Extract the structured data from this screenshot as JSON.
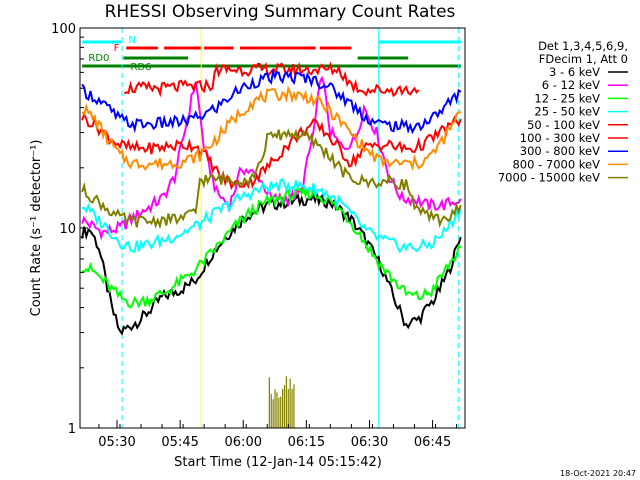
{
  "chart_data": {
    "type": "line",
    "title": "RHESSI Observing Summary Count Rates",
    "xlabel": "Start Time (12-Jan-14 05:15:42)",
    "ylabel": "Count Rate (s⁻¹ detector⁻¹)",
    "yscale": "log",
    "ylim": [
      1,
      100
    ],
    "xlim_minutes": [
      5.5,
      97
    ],
    "x_ticks": [
      "05:30",
      "05:45",
      "06:00",
      "06:15",
      "06:30",
      "06:45"
    ],
    "x_tick_minutes": [
      14.3,
      29.3,
      44.3,
      59.3,
      74.3,
      89.3
    ],
    "y_ticks": [
      "1",
      "10",
      "100"
    ],
    "legend_position": "right",
    "legend_header": [
      "Det 1,3,4,5,6,9,",
      "FDecim 1, Att 0"
    ],
    "series": [
      {
        "name": "3 - 6 keV",
        "color": "#000000",
        "points": [
          [
            6,
            9.5
          ],
          [
            8,
            9.8
          ],
          [
            10,
            8
          ],
          [
            13,
            4
          ],
          [
            15,
            3
          ],
          [
            20,
            3.5
          ],
          [
            25,
            4.5
          ],
          [
            30,
            5
          ],
          [
            33,
            5.5
          ],
          [
            36,
            7
          ],
          [
            40,
            9
          ],
          [
            45,
            11.5
          ],
          [
            50,
            13
          ],
          [
            55,
            13.5
          ],
          [
            60,
            14
          ],
          [
            65,
            13.5
          ],
          [
            70,
            11
          ],
          [
            73,
            9
          ],
          [
            77,
            6.5
          ],
          [
            80,
            4.5
          ],
          [
            83,
            3.3
          ],
          [
            86,
            3.5
          ],
          [
            90,
            4.5
          ],
          [
            93,
            6
          ],
          [
            96,
            9
          ]
        ]
      },
      {
        "name": "6 - 12 keV",
        "color": "#ff00ff",
        "points": [
          [
            6,
            11
          ],
          [
            11,
            9.5
          ],
          [
            15,
            10
          ],
          [
            20,
            12
          ],
          [
            25,
            14
          ],
          [
            28,
            18
          ],
          [
            31,
            35
          ],
          [
            33,
            55
          ],
          [
            35,
            25
          ],
          [
            38,
            15
          ],
          [
            41,
            13
          ],
          [
            44,
            20
          ],
          [
            48,
            18
          ],
          [
            51,
            14
          ],
          [
            55,
            14
          ],
          [
            58,
            15
          ],
          [
            61,
            30
          ],
          [
            63,
            60
          ],
          [
            65,
            30
          ],
          [
            68,
            25
          ],
          [
            71,
            28
          ],
          [
            73,
            40
          ],
          [
            76,
            30
          ],
          [
            79,
            18
          ],
          [
            82,
            14
          ],
          [
            85,
            14
          ],
          [
            88,
            13
          ],
          [
            92,
            13
          ],
          [
            96,
            14
          ]
        ]
      },
      {
        "name": "12 - 25 keV",
        "color": "#00ff00",
        "points": [
          [
            6,
            6.5
          ],
          [
            9,
            6
          ],
          [
            12,
            5.2
          ],
          [
            15,
            4.5
          ],
          [
            18,
            4.2
          ],
          [
            22,
            4.4
          ],
          [
            26,
            4.8
          ],
          [
            30,
            5.5
          ],
          [
            34,
            6.5
          ],
          [
            38,
            8
          ],
          [
            42,
            10
          ],
          [
            46,
            12
          ],
          [
            50,
            13.5
          ],
          [
            55,
            14.5
          ],
          [
            60,
            15
          ],
          [
            64,
            14
          ],
          [
            68,
            12
          ],
          [
            71,
            10
          ],
          [
            74,
            8
          ],
          [
            77,
            6.5
          ],
          [
            80,
            5.5
          ],
          [
            83,
            4.7
          ],
          [
            86,
            4.5
          ],
          [
            89,
            4.8
          ],
          [
            92,
            6
          ],
          [
            96,
            8
          ]
        ]
      },
      {
        "name": "25 - 50 keV",
        "color": "#00ffff",
        "points": [
          [
            6,
            13
          ],
          [
            9,
            11.5
          ],
          [
            12,
            10
          ],
          [
            15,
            8.5
          ],
          [
            18,
            8
          ],
          [
            22,
            8.3
          ],
          [
            26,
            8.8
          ],
          [
            30,
            9.5
          ],
          [
            34,
            10.5
          ],
          [
            38,
            12
          ],
          [
            42,
            13.5
          ],
          [
            46,
            15
          ],
          [
            50,
            16
          ],
          [
            55,
            16.5
          ],
          [
            60,
            16
          ],
          [
            64,
            15
          ],
          [
            68,
            13
          ],
          [
            71,
            11
          ],
          [
            74,
            9.5
          ],
          [
            77,
            8.8
          ],
          [
            80,
            8.3
          ],
          [
            83,
            8
          ],
          [
            86,
            8
          ],
          [
            89,
            8.3
          ],
          [
            92,
            9.5
          ],
          [
            96,
            12.5
          ]
        ]
      },
      {
        "name": "50 - 100 keV",
        "color": "#ff0000",
        "points": [
          [
            6,
            36
          ],
          [
            9,
            33
          ],
          [
            12,
            29
          ],
          [
            15,
            26
          ],
          [
            18,
            25
          ],
          [
            22,
            25
          ],
          [
            26,
            25.5
          ],
          [
            30,
            26
          ],
          [
            33,
            26
          ],
          [
            36,
            22
          ],
          [
            39,
            18
          ],
          [
            42,
            16.5
          ],
          [
            46,
            17
          ],
          [
            50,
            20
          ],
          [
            54,
            25
          ],
          [
            58,
            30
          ],
          [
            61,
            33
          ],
          [
            64,
            30
          ],
          [
            67,
            25
          ],
          [
            70,
            21
          ],
          [
            73,
            25
          ],
          [
            76,
            26
          ],
          [
            79,
            26
          ],
          [
            82,
            25
          ],
          [
            85,
            25
          ],
          [
            88,
            27
          ],
          [
            91,
            30
          ],
          [
            94,
            33
          ],
          [
            96,
            35
          ]
        ]
      },
      {
        "name": "100 - 300 keV",
        "color": "#ff0000",
        "points": [
          [
            16,
            50
          ],
          [
            20,
            50
          ],
          [
            25,
            50
          ],
          [
            30,
            51
          ],
          [
            34,
            51
          ],
          [
            37,
            52
          ],
          [
            38,
            62
          ],
          [
            45,
            62
          ],
          [
            52,
            62
          ],
          [
            58,
            62
          ],
          [
            62,
            62
          ],
          [
            64,
            62
          ],
          [
            67,
            62
          ],
          [
            70,
            52
          ],
          [
            73,
            49
          ],
          [
            77,
            49
          ],
          [
            80,
            49
          ],
          [
            83,
            49
          ],
          [
            86,
            49
          ]
        ]
      },
      {
        "name": "300 - 800 keV",
        "color": "#0000ff",
        "points": [
          [
            6,
            49
          ],
          [
            9,
            45
          ],
          [
            12,
            40
          ],
          [
            15,
            35
          ],
          [
            18,
            33
          ],
          [
            22,
            33
          ],
          [
            26,
            33.5
          ],
          [
            30,
            34
          ],
          [
            34,
            36
          ],
          [
            38,
            40
          ],
          [
            42,
            47
          ],
          [
            46,
            53
          ],
          [
            50,
            56
          ],
          [
            55,
            57
          ],
          [
            60,
            56
          ],
          [
            64,
            52
          ],
          [
            68,
            45
          ],
          [
            71,
            40
          ],
          [
            74,
            35
          ],
          [
            77,
            33
          ],
          [
            80,
            32.5
          ],
          [
            83,
            32
          ],
          [
            86,
            32.5
          ],
          [
            89,
            35
          ],
          [
            92,
            40
          ],
          [
            96,
            48
          ]
        ]
      },
      {
        "name": "800 - 7000 keV",
        "color": "#ff8c00",
        "points": [
          [
            6,
            40
          ],
          [
            9,
            35
          ],
          [
            12,
            28
          ],
          [
            15,
            23
          ],
          [
            18,
            21
          ],
          [
            22,
            21
          ],
          [
            26,
            21
          ],
          [
            30,
            21.5
          ],
          [
            34,
            23
          ],
          [
            38,
            28
          ],
          [
            42,
            35
          ],
          [
            46,
            42
          ],
          [
            50,
            46
          ],
          [
            55,
            47
          ],
          [
            60,
            45
          ],
          [
            64,
            40
          ],
          [
            68,
            33
          ],
          [
            71,
            28
          ],
          [
            74,
            24
          ],
          [
            77,
            21.5
          ],
          [
            80,
            21
          ],
          [
            83,
            21
          ],
          [
            86,
            21
          ],
          [
            89,
            23
          ],
          [
            92,
            28
          ],
          [
            96,
            38
          ]
        ]
      },
      {
        "name": "7000 - 15000 keV",
        "color": "#808000",
        "points": [
          [
            6,
            15.5
          ],
          [
            9,
            14
          ],
          [
            12,
            12.5
          ],
          [
            15,
            11.2
          ],
          [
            18,
            10.8
          ],
          [
            22,
            10.8
          ],
          [
            26,
            11
          ],
          [
            30,
            11.2
          ],
          [
            33,
            12
          ],
          [
            34,
            17.5
          ],
          [
            40,
            17.5
          ],
          [
            46,
            17.5
          ],
          [
            48,
            20
          ],
          [
            50,
            28
          ],
          [
            55,
            30
          ],
          [
            60,
            28
          ],
          [
            64,
            24
          ],
          [
            68,
            19
          ],
          [
            70,
            17.5
          ],
          [
            73,
            17
          ],
          [
            77,
            17
          ],
          [
            80,
            17
          ],
          [
            83,
            16.5
          ],
          [
            86,
            12
          ],
          [
            90,
            11
          ],
          [
            94,
            11.5
          ],
          [
            96,
            13
          ]
        ]
      }
    ],
    "spikes_7000_15000": {
      "t_start": 50.5,
      "t_end": 56.8,
      "value": 1.6
    },
    "vertical_lines": [
      {
        "t": 15.5,
        "color": "#00ffff",
        "dashed": true
      },
      {
        "t": 34.3,
        "color": "#ffff00",
        "dashed": false
      },
      {
        "t": 76.5,
        "color": "#00ffff",
        "dashed": false
      },
      {
        "t": 95.5,
        "color": "#00ffff",
        "dashed": true
      }
    ],
    "flags": [
      {
        "label": "N",
        "color": "#00ffff",
        "segments": [
          [
            6,
            15.5
          ],
          [
            76.5,
            96
          ]
        ]
      },
      {
        "label": "F",
        "color": "#ff0000",
        "segments": [
          [
            16.5,
            24
          ],
          [
            25.5,
            34.5
          ],
          [
            35,
            42
          ],
          [
            43.5,
            61.5
          ],
          [
            62.5,
            70
          ]
        ]
      },
      {
        "label": "RD0",
        "color": "#008000",
        "segments": [
          [
            15.8,
            31.2
          ],
          [
            71.5,
            83.5
          ]
        ]
      },
      {
        "label": "RD6",
        "color": "#008000",
        "segments": [
          [
            6,
            96
          ]
        ]
      }
    ],
    "timestamp": "18-Oct-2021 20:47"
  }
}
